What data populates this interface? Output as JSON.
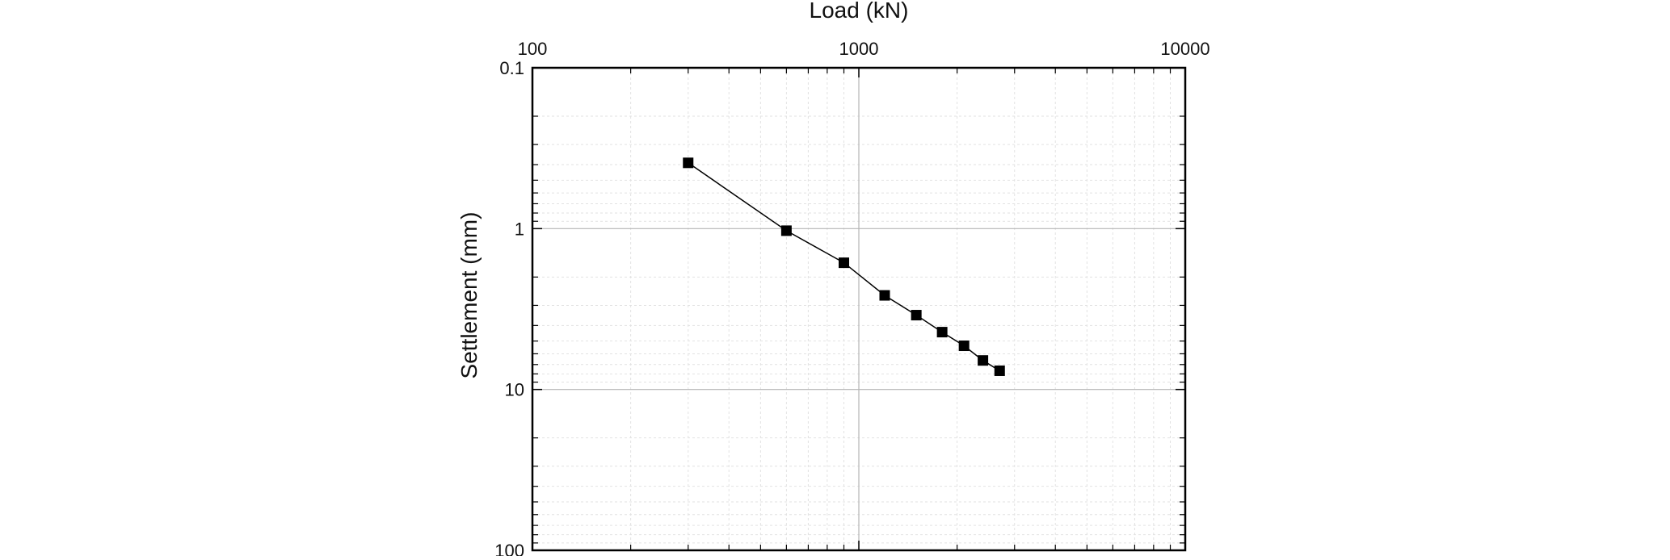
{
  "chart_data": {
    "type": "scatter",
    "title": "",
    "xlabel": "Load (kN)",
    "ylabel": "Settlement (mm)",
    "x_scale": "log",
    "y_scale": "log",
    "y_inverted": true,
    "x_axis_position": "top",
    "xlim": [
      100,
      10000
    ],
    "ylim": [
      0.1,
      100
    ],
    "x_ticks": [
      "100",
      "1000",
      "10000"
    ],
    "y_ticks": [
      "0.1",
      "1",
      "10",
      "100"
    ],
    "grid": true,
    "legend": "none",
    "series": [
      {
        "x": [
          300,
          600,
          900,
          1200,
          1500,
          1800,
          2100,
          2400,
          2700
        ],
        "y": [
          0.39,
          1.03,
          1.63,
          2.6,
          3.45,
          4.4,
          5.35,
          6.6,
          7.65
        ],
        "marker": "square",
        "line": true,
        "color": "#000000"
      }
    ]
  }
}
